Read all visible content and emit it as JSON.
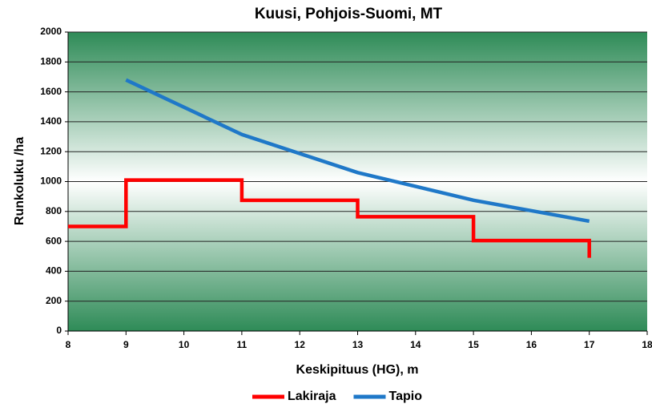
{
  "chart_data": {
    "type": "line",
    "title": "Kuusi, Pohjois-Suomi, MT",
    "xlabel": "Keskipituus (HG), m",
    "ylabel": "Runkoluku /ha",
    "series": [
      {
        "name": "Lakiraja",
        "color": "#ff0000",
        "x": [
          8,
          9,
          9,
          11,
          11,
          13,
          13,
          15,
          15,
          17,
          17
        ],
        "values": [
          700,
          700,
          1010,
          1010,
          875,
          875,
          765,
          765,
          605,
          605,
          490
        ]
      },
      {
        "name": "Tapio",
        "color": "#1f78c8",
        "x": [
          9,
          11,
          13,
          15,
          17
        ],
        "values": [
          1680,
          1315,
          1060,
          875,
          735
        ]
      }
    ],
    "xlim": [
      8,
      18
    ],
    "xticks": [
      8,
      9,
      10,
      11,
      12,
      13,
      14,
      15,
      16,
      17,
      18
    ],
    "ylim": [
      0,
      2000
    ],
    "yticks": [
      0,
      200,
      400,
      600,
      800,
      1000,
      1200,
      1400,
      1600,
      1800,
      2000
    ],
    "grid": true,
    "legend": "bottom"
  }
}
